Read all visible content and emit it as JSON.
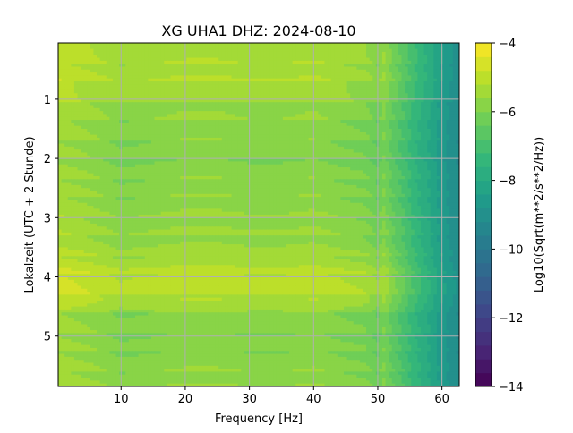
{
  "chart_data": {
    "type": "heatmap",
    "title": "XG UHA1  DHZ: 2024-08-10",
    "xlabel": "Frequency [Hz]",
    "ylabel": "Lokalzeit (UTC + 2 Stunde)",
    "xlim": [
      0.2,
      62.7
    ],
    "ylim": [
      0.05,
      5.85
    ],
    "y_inverted": true,
    "grid": true,
    "x_ticks": [
      10,
      20,
      30,
      40,
      50,
      60
    ],
    "y_ticks": [
      1,
      2,
      3,
      4,
      5
    ],
    "colormap": "viridis",
    "colorbar": {
      "label": "Log10(Sqrt(m**2/s**2/Hz))",
      "min": -14,
      "max": -4,
      "ticks": [
        -4,
        -6,
        -8,
        -10,
        -12,
        -14
      ],
      "levels": 25
    },
    "spectral_profile": {
      "frequency_hz": [
        0.2,
        5,
        10,
        15,
        20,
        25,
        30,
        35,
        40,
        45,
        48,
        50,
        51,
        52,
        54,
        56,
        58,
        60,
        62.7
      ],
      "log10_amplitude": [
        -5.4,
        -5.6,
        -5.9,
        -5.8,
        -5.7,
        -5.7,
        -5.8,
        -5.8,
        -5.7,
        -5.9,
        -6.0,
        -6.3,
        -6.0,
        -6.4,
        -6.9,
        -7.5,
        -8.0,
        -8.6,
        -9.2
      ]
    },
    "time_profile": {
      "local_time_hours": [
        0.05,
        0.3,
        0.7,
        1.0,
        1.5,
        2.0,
        2.5,
        3.0,
        3.5,
        3.8,
        4.0,
        4.2,
        4.4,
        4.6,
        5.0,
        5.5,
        5.85
      ],
      "log10_offset": [
        0.6,
        0.4,
        0.5,
        0.2,
        0.0,
        -0.1,
        0.0,
        0.1,
        0.2,
        0.5,
        0.8,
        0.7,
        0.6,
        0.0,
        -0.1,
        0.0,
        0.1
      ]
    },
    "annotations": [
      "vertical spectral line near 50 Hz"
    ]
  },
  "colors": {
    "colormap_stops": [
      "#440154",
      "#482878",
      "#3e4989",
      "#31688e",
      "#26828e",
      "#1f9e89",
      "#35b779",
      "#6ece58",
      "#b5de2b",
      "#fde725"
    ],
    "grid": "#b0b0b0"
  }
}
